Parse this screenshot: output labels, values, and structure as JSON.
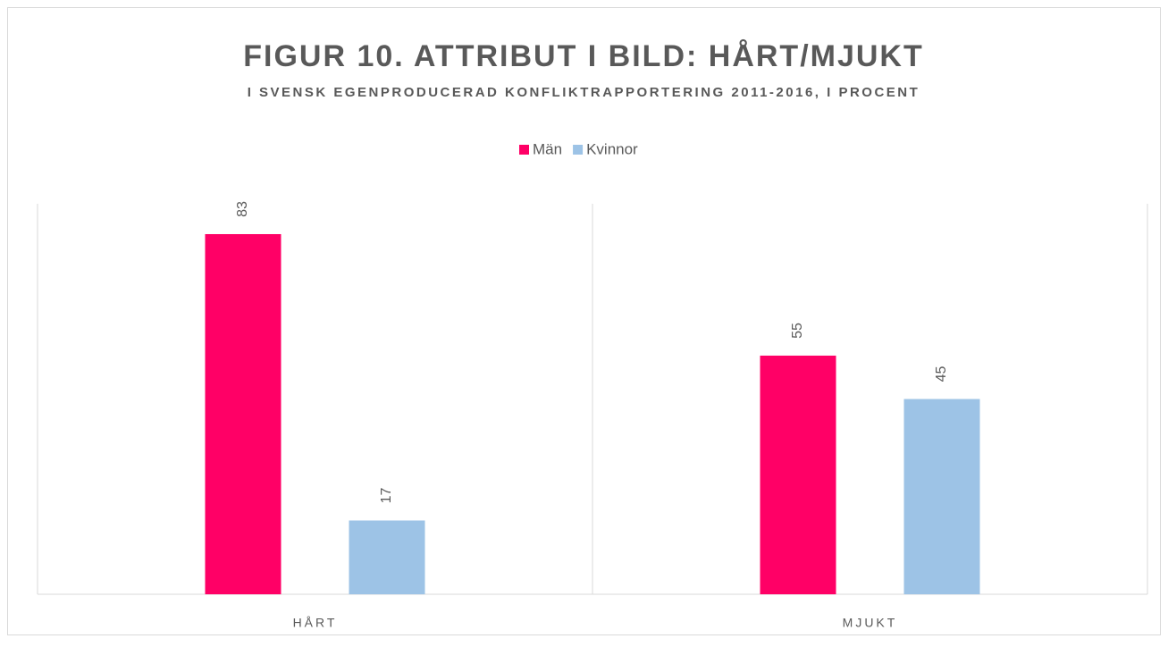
{
  "chart_data": {
    "type": "bar",
    "title": "FIGUR 10. ATTRIBUT I BILD: HÅRT/MJUKT",
    "subtitle": "I SVENSK EGENPRODUCERAD KONFLIKTRAPPORTERING 2011-2016, I PROCENT",
    "categories": [
      "HÅRT",
      "MJUKT"
    ],
    "series": [
      {
        "name": "Män",
        "color": "#ff0066",
        "values": [
          83,
          55
        ]
      },
      {
        "name": "Kvinnor",
        "color": "#9dc3e6",
        "values": [
          17,
          45
        ]
      }
    ],
    "ylim": [
      0,
      90
    ],
    "legend": "top"
  }
}
